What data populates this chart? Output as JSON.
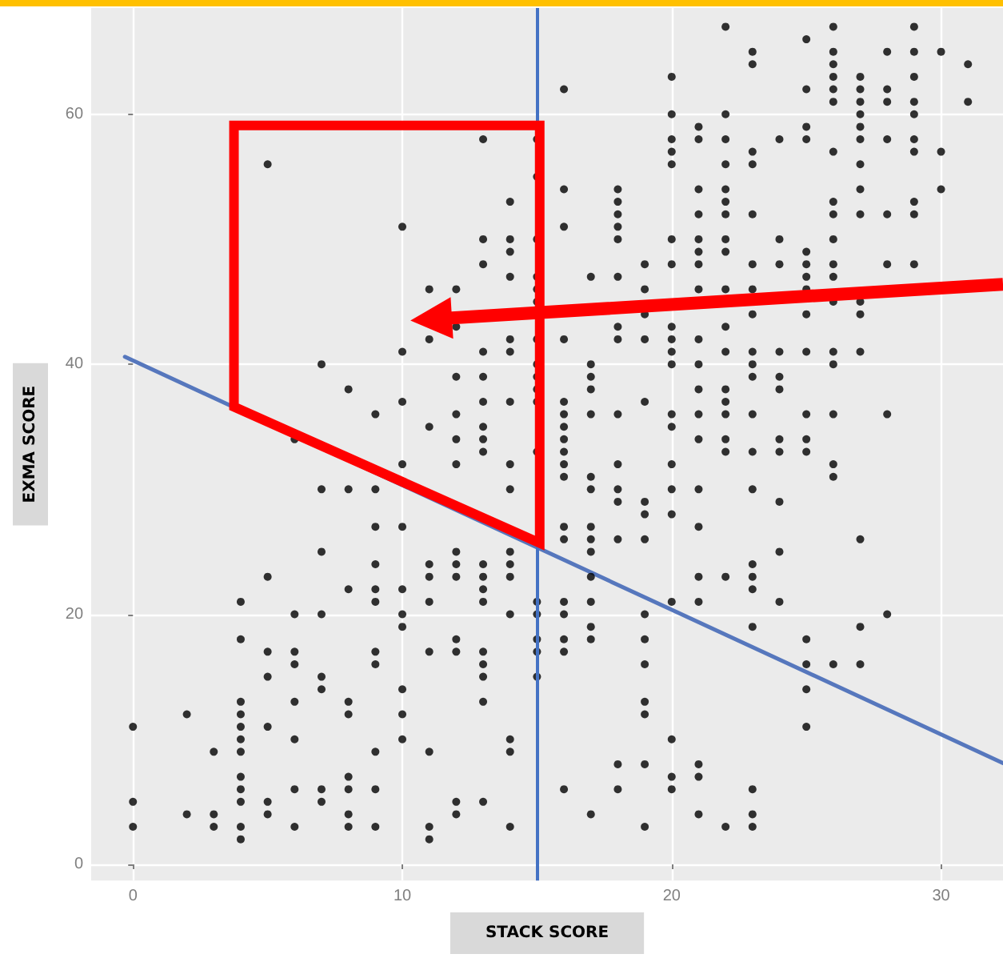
{
  "chart_data": {
    "type": "scatter",
    "xlabel": "STACK SCORE",
    "ylabel": "EXMA SCORE",
    "xlim": [
      -1.55,
      32.3
    ],
    "ylim": [
      -1.3,
      68.5
    ],
    "xticks": [
      0,
      10,
      20,
      30
    ],
    "yticks": [
      0,
      20,
      40,
      60
    ],
    "grid": true,
    "ref_lines": [
      {
        "axis": "x",
        "value": 15,
        "label": null,
        "color": "#4472c4"
      }
    ],
    "series": [
      {
        "color": "#000000",
        "marker": "circle",
        "x": [
          0,
          0,
          0,
          2,
          2,
          3,
          3,
          3,
          4,
          4,
          4,
          4,
          4,
          4,
          4,
          4,
          4,
          4,
          4,
          4,
          5,
          5,
          5,
          5,
          5,
          5,
          5,
          6,
          6,
          6,
          6,
          6,
          6,
          6,
          6,
          7,
          7,
          7,
          7,
          7,
          7,
          7,
          7,
          8,
          8,
          8,
          8,
          8,
          8,
          8,
          8,
          8,
          9,
          9,
          9,
          9,
          9,
          9,
          9,
          9,
          9,
          9,
          9,
          10,
          10,
          10,
          10,
          10,
          10,
          10,
          10,
          10,
          10,
          10,
          11,
          11,
          11,
          11,
          11,
          11,
          11,
          11,
          11,
          11,
          12,
          12,
          12,
          12,
          12,
          12,
          12,
          12,
          12,
          12,
          12,
          12,
          12,
          13,
          13,
          13,
          13,
          13,
          13,
          13,
          13,
          13,
          13,
          13,
          13,
          13,
          13,
          13,
          13,
          13,
          13,
          14,
          14,
          14,
          14,
          14,
          14,
          14,
          14,
          14,
          14,
          14,
          14,
          14,
          14,
          14,
          14,
          15,
          15,
          15,
          15,
          15,
          15,
          15,
          15,
          15,
          15,
          15,
          15,
          15,
          15,
          15,
          15,
          15,
          16,
          16,
          16,
          16,
          16,
          16,
          16,
          16,
          16,
          16,
          16,
          16,
          16,
          16,
          16,
          16,
          16,
          16,
          17,
          17,
          17,
          17,
          17,
          17,
          17,
          17,
          17,
          17,
          17,
          17,
          17,
          17,
          17,
          18,
          18,
          18,
          18,
          18,
          18,
          18,
          18,
          18,
          18,
          18,
          18,
          18,
          18,
          18,
          19,
          19,
          19,
          19,
          19,
          19,
          19,
          19,
          19,
          19,
          19,
          19,
          19,
          19,
          19,
          20,
          20,
          20,
          20,
          20,
          20,
          20,
          20,
          20,
          20,
          20,
          20,
          20,
          20,
          20,
          20,
          20,
          20,
          20,
          20,
          21,
          21,
          21,
          21,
          21,
          21,
          21,
          21,
          21,
          21,
          21,
          21,
          21,
          21,
          21,
          21,
          21,
          21,
          21,
          21,
          22,
          22,
          22,
          22,
          22,
          22,
          22,
          22,
          22,
          22,
          22,
          22,
          22,
          22,
          22,
          22,
          22,
          22,
          22,
          23,
          23,
          23,
          23,
          23,
          23,
          23,
          23,
          23,
          23,
          23,
          23,
          23,
          23,
          23,
          23,
          23,
          23,
          23,
          23,
          23,
          24,
          24,
          24,
          24,
          24,
          24,
          24,
          24,
          24,
          24,
          24,
          25,
          25,
          25,
          25,
          25,
          25,
          25,
          25,
          25,
          25,
          25,
          25,
          25,
          25,
          25,
          25,
          25,
          26,
          26,
          26,
          26,
          26,
          26,
          26,
          26,
          26,
          26,
          26,
          26,
          26,
          26,
          26,
          26,
          26,
          26,
          26,
          27,
          27,
          27,
          27,
          27,
          27,
          27,
          27,
          27,
          27,
          27,
          27,
          27,
          27,
          27,
          28,
          28,
          28,
          28,
          28,
          28,
          28,
          28,
          29,
          29,
          29,
          29,
          29,
          29,
          29,
          29,
          29,
          29,
          30,
          30,
          30,
          31,
          31
        ],
        "values": [
          11,
          5,
          3,
          12,
          4,
          9,
          4,
          3,
          21,
          18,
          13,
          12,
          11,
          10,
          9,
          7,
          6,
          5,
          3,
          2,
          56,
          23,
          17,
          15,
          11,
          5,
          4,
          34,
          20,
          17,
          16,
          13,
          10,
          6,
          3,
          40,
          30,
          25,
          20,
          15,
          14,
          6,
          5,
          38,
          30,
          22,
          13,
          12,
          7,
          6,
          4,
          3,
          36,
          30,
          27,
          24,
          22,
          21,
          17,
          16,
          9,
          6,
          3,
          51,
          41,
          37,
          32,
          27,
          22,
          20,
          19,
          14,
          12,
          10,
          46,
          42,
          35,
          24,
          23,
          21,
          17,
          9,
          3,
          2,
          46,
          43,
          39,
          36,
          34,
          32,
          25,
          24,
          23,
          18,
          17,
          5,
          4,
          58,
          50,
          48,
          41,
          39,
          37,
          35,
          34,
          33,
          24,
          23,
          22,
          21,
          17,
          16,
          15,
          13,
          5,
          53,
          50,
          49,
          47,
          42,
          41,
          37,
          32,
          30,
          25,
          24,
          23,
          20,
          10,
          9,
          3,
          58,
          55,
          50,
          47,
          46,
          45,
          42,
          40,
          39,
          38,
          37,
          33,
          21,
          20,
          18,
          17,
          15,
          62,
          54,
          51,
          42,
          37,
          36,
          35,
          34,
          33,
          32,
          31,
          27,
          26,
          21,
          20,
          18,
          17,
          6,
          47,
          40,
          39,
          38,
          36,
          31,
          30,
          27,
          26,
          25,
          23,
          21,
          19,
          18,
          4,
          54,
          53,
          52,
          51,
          50,
          47,
          43,
          42,
          36,
          32,
          30,
          29,
          26,
          8,
          6,
          48,
          46,
          44,
          42,
          37,
          29,
          28,
          26,
          20,
          18,
          16,
          13,
          12,
          8,
          3,
          63,
          60,
          58,
          57,
          56,
          50,
          48,
          43,
          42,
          41,
          40,
          36,
          35,
          32,
          30,
          28,
          21,
          10,
          7,
          6,
          59,
          58,
          54,
          52,
          50,
          49,
          48,
          46,
          42,
          40,
          38,
          36,
          34,
          30,
          27,
          23,
          21,
          8,
          7,
          4,
          67,
          60,
          58,
          56,
          54,
          53,
          52,
          50,
          49,
          46,
          43,
          41,
          38,
          37,
          36,
          34,
          33,
          23,
          3,
          65,
          64,
          57,
          56,
          52,
          48,
          46,
          44,
          41,
          40,
          39,
          36,
          33,
          30,
          24,
          23,
          22,
          19,
          6,
          4,
          3,
          58,
          50,
          48,
          41,
          39,
          38,
          34,
          33,
          29,
          25,
          21,
          66,
          62,
          59,
          58,
          49,
          48,
          47,
          46,
          44,
          41,
          36,
          34,
          33,
          18,
          16,
          14,
          11,
          67,
          65,
          64,
          63,
          62,
          61,
          57,
          53,
          52,
          50,
          48,
          47,
          45,
          41,
          40,
          36,
          32,
          31,
          16,
          63,
          62,
          61,
          60,
          59,
          58,
          56,
          54,
          52,
          45,
          44,
          41,
          26,
          19,
          16,
          65,
          62,
          61,
          58,
          52,
          48,
          36,
          20,
          67,
          65,
          63,
          61,
          60,
          58,
          57,
          53,
          52,
          48,
          65,
          57,
          54,
          64,
          61
        ]
      },
      {
        "type": "line",
        "color": "#5677bd",
        "x": [
          -0.3,
          32.3
        ],
        "values": [
          40.6,
          8.1
        ]
      }
    ]
  }
}
